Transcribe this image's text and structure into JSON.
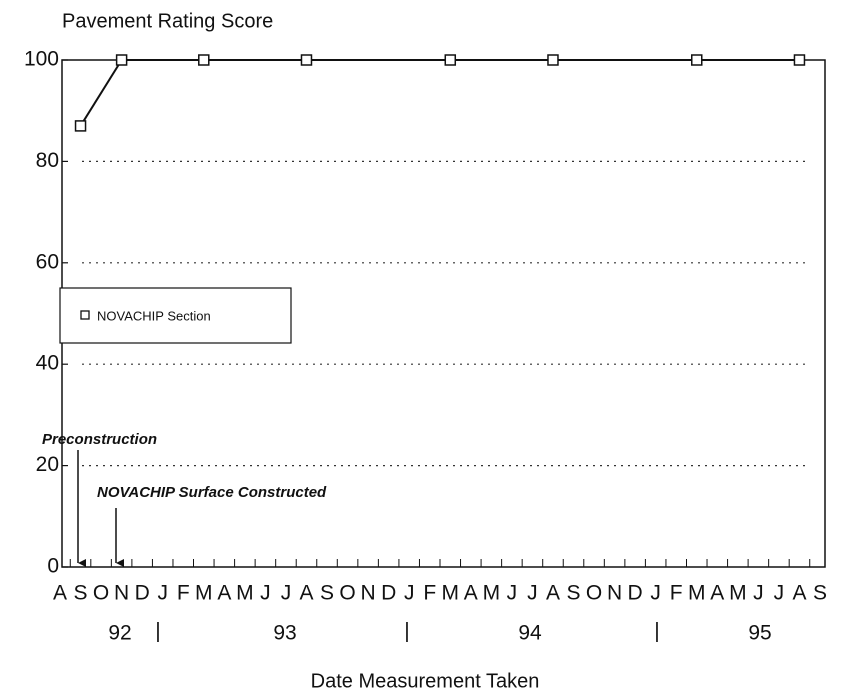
{
  "chart_data": {
    "type": "line",
    "y_label": "Pavement Rating Score",
    "x_label": "Date Measurement Taken",
    "categories": [
      "A",
      "S",
      "O",
      "N",
      "D",
      "J",
      "F",
      "M",
      "A",
      "M",
      "J",
      "J",
      "A",
      "S",
      "O",
      "N",
      "D",
      "J",
      "F",
      "M",
      "A",
      "M",
      "J",
      "J",
      "A",
      "S",
      "O",
      "N",
      "D",
      "J",
      "F",
      "M",
      "A",
      "M",
      "J",
      "J",
      "A",
      "S"
    ],
    "years": [
      "92",
      "93",
      "94",
      "95"
    ],
    "series": [
      {
        "name": "NOVACHIP Section",
        "color": "#111111",
        "values": [
          null,
          87,
          null,
          100,
          null,
          null,
          null,
          100,
          null,
          null,
          null,
          null,
          100,
          null,
          null,
          null,
          null,
          null,
          null,
          100,
          null,
          null,
          null,
          null,
          100,
          null,
          null,
          null,
          null,
          null,
          null,
          100,
          null,
          null,
          null,
          null,
          100,
          null
        ]
      }
    ],
    "ylim": [
      0,
      100
    ],
    "yticks": [
      0,
      20,
      40,
      60,
      80,
      100
    ],
    "grid": true,
    "annotations": [
      "Preconstruction",
      "NOVACHIP Surface Constructed"
    ]
  }
}
